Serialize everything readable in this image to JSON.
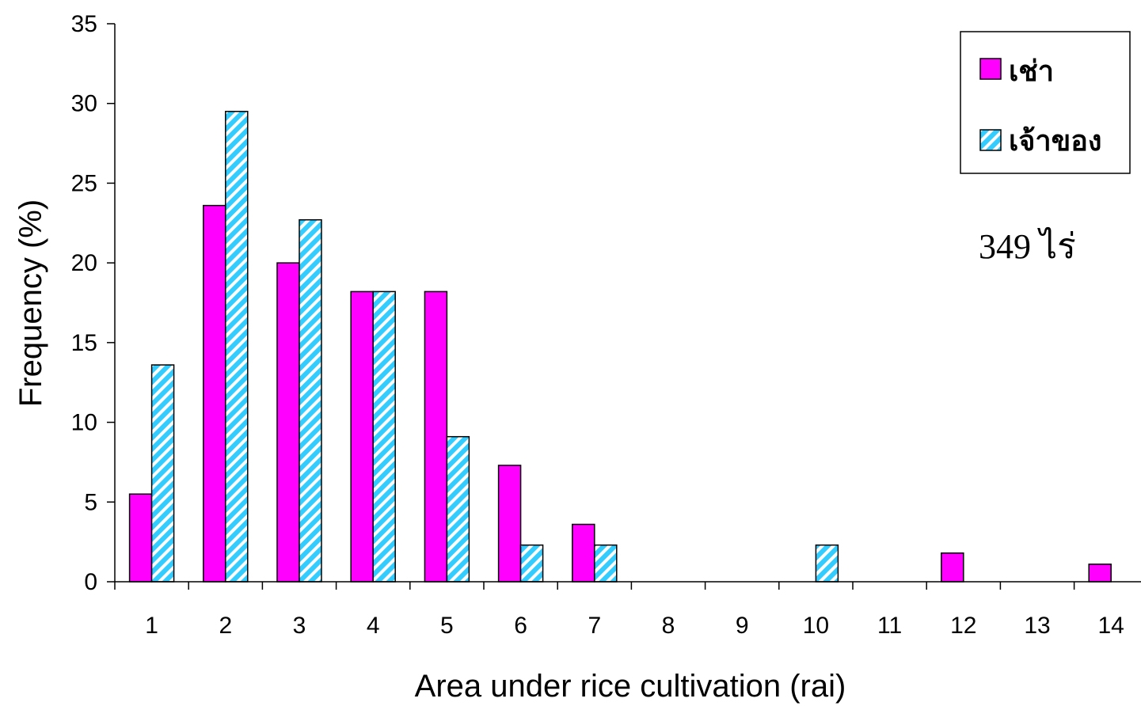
{
  "chart_data": {
    "type": "bar",
    "title": "",
    "xlabel": "Area under rice cultivation (rai)",
    "ylabel": "Frequency (%)",
    "categories": [
      "1",
      "2",
      "3",
      "4",
      "5",
      "6",
      "7",
      "8",
      "9",
      "10",
      "11",
      "12",
      "13",
      "14"
    ],
    "series": [
      {
        "name": "เช่า",
        "color": "#ff00ff",
        "pattern": "solid",
        "values": [
          5.5,
          23.6,
          20.0,
          18.2,
          18.2,
          7.3,
          3.6,
          0,
          0,
          0,
          0,
          1.8,
          0,
          1.1
        ]
      },
      {
        "name": "เจ้าของ",
        "color": "#33ccff",
        "pattern": "diagonal-stripes",
        "values": [
          13.6,
          29.5,
          22.7,
          18.2,
          9.1,
          2.3,
          2.3,
          0,
          0,
          2.3,
          0,
          0,
          0,
          0
        ]
      }
    ],
    "ylim": [
      0,
      35
    ],
    "yticks": [
      "0",
      "5",
      "10",
      "15",
      "20",
      "25",
      "30",
      "35"
    ],
    "grid": false,
    "legend_position": "top-right",
    "annotation": "349 ไร่"
  }
}
